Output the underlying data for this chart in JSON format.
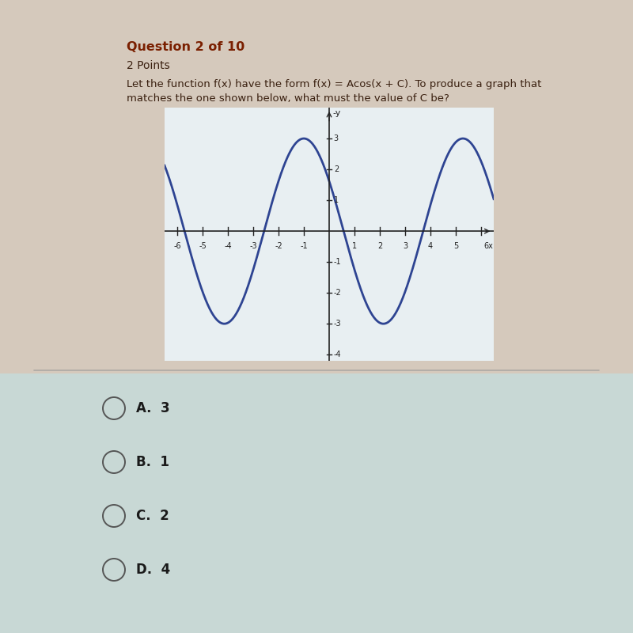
{
  "title_question": "Question 2 of 10",
  "subtitle": "2 Points",
  "body_text_line1": "Let the function f(x) have the form f(x) = Acos(x + C). To produce a graph that",
  "body_text_line2": "matches the one shown below, what must the value of C be?",
  "amplitude": 3,
  "phase_shift": 1,
  "x_min": -6.5,
  "x_max": 6.5,
  "y_min": -4.2,
  "y_max": 4.0,
  "x_ticks": [
    -6,
    -5,
    -4,
    -3,
    -2,
    -1,
    1,
    2,
    3,
    4,
    5
  ],
  "y_ticks": [
    -4,
    -3,
    -2,
    -1,
    1,
    2,
    3
  ],
  "curve_color": "#2e4492",
  "curve_linewidth": 2.0,
  "bg_color_top": "#d5c9bc",
  "bg_color_bottom": "#c8d8d5",
  "graph_bg_color": "#e8eff2",
  "options": [
    "A.  3",
    "B.  1",
    "C.  2",
    "D.  4"
  ],
  "title_color": "#7a1f00",
  "text_color": "#3a2010",
  "axis_color": "#222222",
  "option_text_color": "#1a1a1a",
  "circle_color": "#555555",
  "separator_color": "#999999"
}
